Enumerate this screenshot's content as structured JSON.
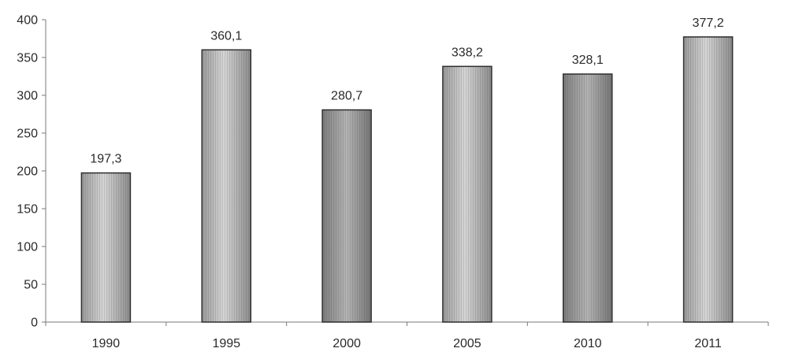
{
  "chart_data": {
    "type": "bar",
    "title": "",
    "xlabel": "",
    "ylabel": "",
    "categories": [
      "1990",
      "1995",
      "2000",
      "2005",
      "2010",
      "2011"
    ],
    "values": [
      197.3,
      360.1,
      280.7,
      338.2,
      328.1,
      377.2
    ],
    "value_labels": [
      "197,3",
      "360,1",
      "280,7",
      "338,2",
      "328,1",
      "377,2"
    ],
    "ylim": [
      0,
      400
    ],
    "yticks": [
      0,
      50,
      100,
      150,
      200,
      250,
      300,
      350,
      400
    ],
    "grid": false,
    "legend": "none",
    "colors": {
      "bar_light": "#d2d2d2",
      "bar_dark": "#9c9c9c",
      "bar_outline": "#2f2f2f",
      "axis": "#7a7a7a"
    }
  }
}
